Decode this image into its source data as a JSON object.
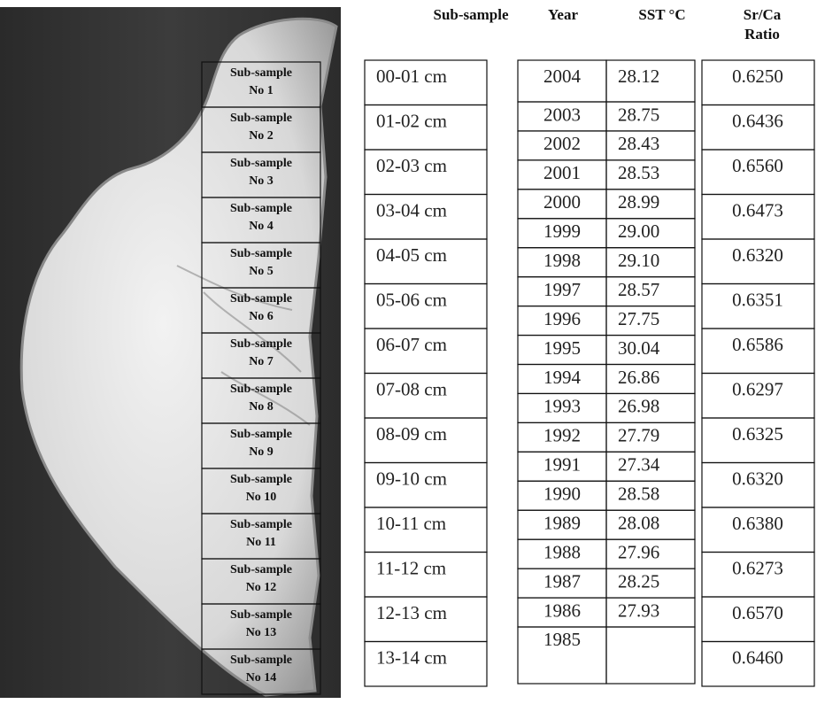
{
  "image": {
    "samples": [
      {
        "line1": "Sub-sample",
        "line2": "No 1"
      },
      {
        "line1": "Sub-sample",
        "line2": "No 2"
      },
      {
        "line1": "Sub-sample",
        "line2": "No 3"
      },
      {
        "line1": "Sub-sample",
        "line2": "No 4"
      },
      {
        "line1": "Sub-sample",
        "line2": "No 5"
      },
      {
        "line1": "Sub-sample",
        "line2": "No 6"
      },
      {
        "line1": "Sub-sample",
        "line2": "No 7"
      },
      {
        "line1": "Sub-sample",
        "line2": "No 8"
      },
      {
        "line1": "Sub-sample",
        "line2": "No 9"
      },
      {
        "line1": "Sub-sample",
        "line2": "No 10"
      },
      {
        "line1": "Sub-sample",
        "line2": "No 11"
      },
      {
        "line1": "Sub-sample",
        "line2": "No 12"
      },
      {
        "line1": "Sub-sample",
        "line2": "No 13"
      },
      {
        "line1": "Sub-sample",
        "line2": "No 14"
      }
    ]
  },
  "headers": {
    "subsample": "Sub-sample",
    "year": "Year",
    "sst": "SST °C",
    "ratio_line1": "Sr/Ca",
    "ratio_line2": "Ratio"
  },
  "subsamples": [
    "00-01 cm",
    "01-02 cm",
    "02-03 cm",
    "03-04 cm",
    "04-05 cm",
    "05-06 cm",
    "06-07 cm",
    "07-08 cm",
    "08-09 cm",
    "09-10 cm",
    "10-11 cm",
    "11-12 cm",
    "12-13 cm",
    "13-14 cm"
  ],
  "years": [
    [
      "2004",
      "28.12"
    ],
    [
      "2003",
      "28.75"
    ],
    [
      "2002",
      "28.43"
    ],
    [
      "2001",
      "28.53"
    ],
    [
      "2000",
      "28.99"
    ],
    [
      "1999",
      "29.00"
    ],
    [
      "1998",
      "29.10"
    ],
    [
      "1997",
      "28.57"
    ],
    [
      "1996",
      "27.75"
    ],
    [
      "1995",
      "30.04"
    ],
    [
      "1994",
      "26.86"
    ],
    [
      "1993",
      "26.98"
    ],
    [
      "1992",
      "27.79"
    ],
    [
      "1991",
      "27.34"
    ],
    [
      "1990",
      "28.58"
    ],
    [
      "1989",
      "28.08"
    ],
    [
      "1988",
      "27.96"
    ],
    [
      "1987",
      "28.25"
    ],
    [
      "1986",
      "27.93"
    ],
    [
      "1985"
    ]
  ],
  "ratios": [
    "0.6250",
    "0.6436",
    "0.6560",
    "0.6473",
    "0.6320",
    "0.6351",
    "0.6586",
    "0.6297",
    "0.6325",
    "0.6320",
    "0.6380",
    "0.6273",
    "0.6570",
    "0.6460"
  ]
}
